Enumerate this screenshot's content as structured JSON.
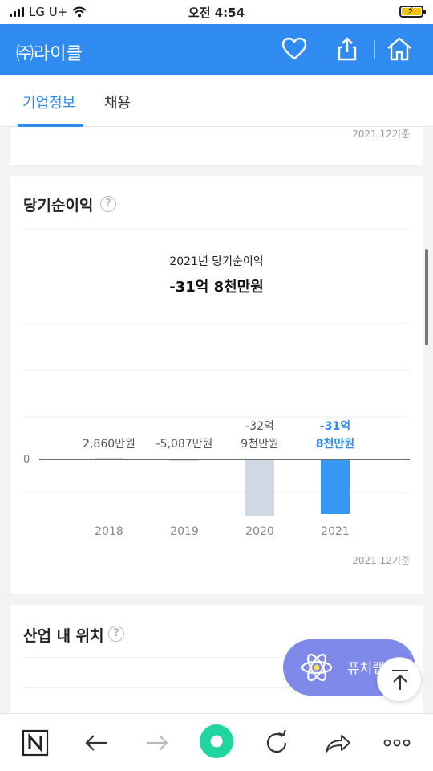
{
  "status_bar": {
    "carrier": "LG U+",
    "time": "오전 4:54"
  },
  "app_bar": {
    "title": "㈜라이클"
  },
  "tabs": [
    {
      "label": "기업정보",
      "active": true
    },
    {
      "label": "채용",
      "active": false
    }
  ],
  "prev_card": {
    "basis": "2021.12기준"
  },
  "net_income_card": {
    "title": "당기순이익",
    "help": "?",
    "headline_label": "2021년 당기순이익",
    "headline_value": "-31억 8천만원",
    "basis": "2021.12기준"
  },
  "chart_data": {
    "type": "bar",
    "categories": [
      "2018",
      "2019",
      "2020",
      "2021"
    ],
    "values": [
      0.286,
      -0.5087,
      -32.9,
      -31.8
    ],
    "unit": "억원",
    "value_labels": [
      [
        "2,860만원"
      ],
      [
        "-5,087만원"
      ],
      [
        "-32억",
        "9천만원"
      ],
      [
        "-31억",
        "8천만원"
      ]
    ],
    "highlight_index": 3,
    "zero_label": "0",
    "colors": {
      "normal": "#d0d9e3",
      "highlight": "#3697f5",
      "label_highlight": "#2f8bf0",
      "label_normal": "#555555"
    }
  },
  "industry_card": {
    "title": "산업 내 위치",
    "help": "?"
  },
  "floating": {
    "label": "퓨처랩"
  },
  "colors": {
    "brand": "#2f8bf0",
    "fab": "#7f89ea",
    "home_dot": "#1fd6a0"
  }
}
